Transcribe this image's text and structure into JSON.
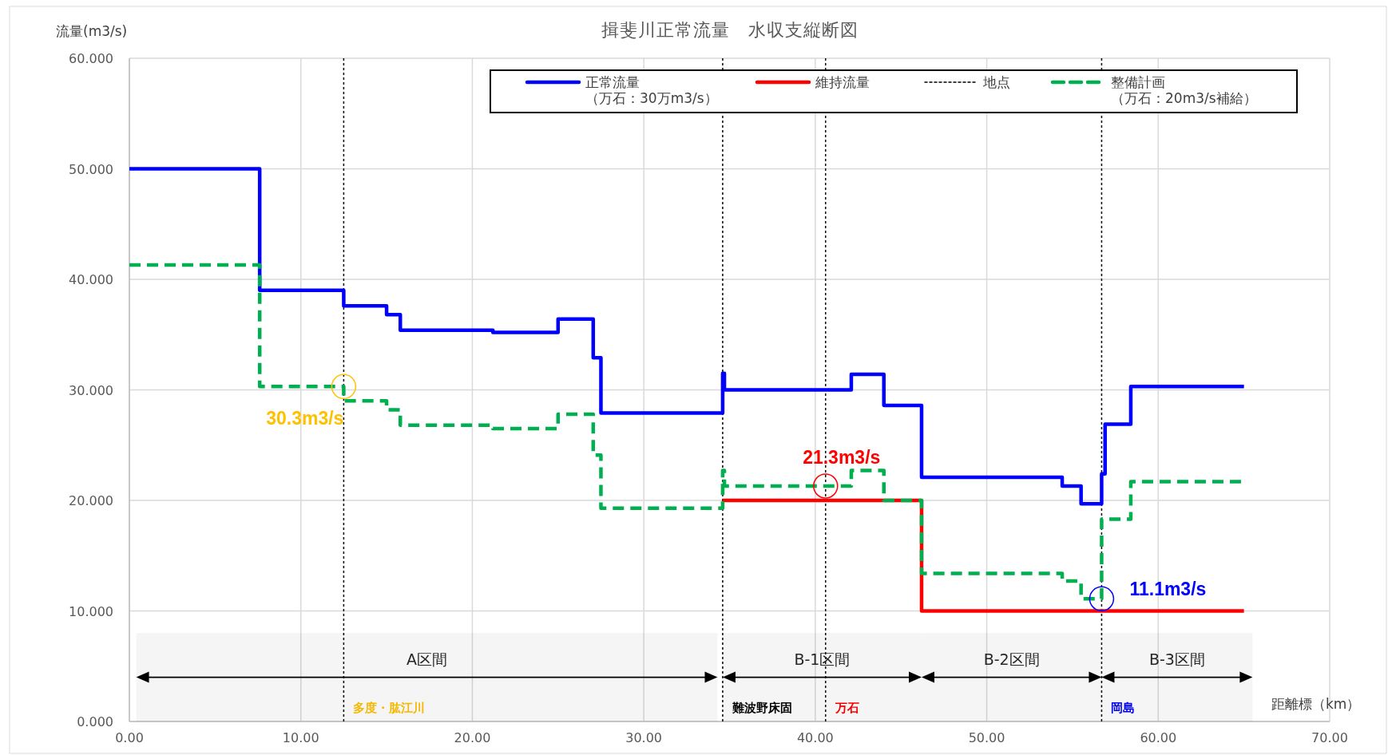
{
  "chart_data": {
    "type": "step",
    "title": "揖斐川正常流量　水収支縦断図",
    "ylabel": "流量(m3/s)",
    "xlabel": "距離標（km）",
    "xlim": [
      0,
      70
    ],
    "xticks": [
      {
        "value": 0,
        "label": "0.00"
      },
      {
        "value": 10,
        "label": "10.00"
      },
      {
        "value": 20,
        "label": "20.00"
      },
      {
        "value": 30,
        "label": "30.00"
      },
      {
        "value": 40,
        "label": "40.00"
      },
      {
        "value": 50,
        "label": "50.00"
      },
      {
        "value": 60,
        "label": "60.00"
      },
      {
        "value": 70,
        "label": "70.00"
      }
    ],
    "ylim": [
      0,
      60
    ],
    "yticks": [
      {
        "value": 0,
        "label": "0.000"
      },
      {
        "value": 10,
        "label": "10.000"
      },
      {
        "value": 20,
        "label": "20.000"
      },
      {
        "value": 30,
        "label": "30.000"
      },
      {
        "value": 40,
        "label": "40.000"
      },
      {
        "value": 50,
        "label": "50.000"
      },
      {
        "value": 60,
        "label": "60.000"
      }
    ],
    "grid": true,
    "legend": "top right",
    "series": [
      {
        "name": "正常流量（万石：30万m3/s）",
        "color": "#0000ff",
        "line_style": "solid",
        "x": [
          0,
          7.6,
          12.5,
          15.0,
          15.8,
          21.2,
          25.0,
          27.05,
          27.5,
          34.6,
          34.7,
          42.1,
          44.0,
          46.2,
          54.4,
          55.5,
          56.7,
          56.9,
          58.4,
          65
        ],
        "values": [
          50,
          39,
          37.6,
          36.8,
          35.4,
          35.2,
          36.4,
          32.9,
          27.9,
          31.5,
          30.0,
          31.4,
          28.6,
          22.1,
          21.3,
          19.7,
          22.4,
          26.9,
          30.3,
          30.3
        ]
      },
      {
        "name": "維持流量",
        "color": "#ff0000",
        "line_style": "solid",
        "x": [
          34.6,
          46.2,
          65
        ],
        "values": [
          20,
          10,
          10
        ]
      },
      {
        "name": "整備計画（万石：20m3/s補給）",
        "color": "#00b050",
        "line_style": "dashed",
        "x": [
          0,
          7.6,
          12.5,
          15.0,
          15.8,
          21.2,
          25.0,
          27.05,
          27.5,
          34.6,
          34.7,
          42.1,
          44.0,
          46.2,
          54.4,
          55.5,
          56.7,
          58.4,
          65
        ],
        "values": [
          41.3,
          30.3,
          29.0,
          28.2,
          26.8,
          26.5,
          27.8,
          24.1,
          19.3,
          22.7,
          21.3,
          22.7,
          20.0,
          13.4,
          12.7,
          11.1,
          18.3,
          21.7,
          21.7
        ]
      }
    ],
    "ref_lines": [
      {
        "axis": "x",
        "value": 12.5,
        "label": "多度・肱江川",
        "color": "#000000",
        "line_style": "dotted"
      },
      {
        "axis": "x",
        "value": 34.6,
        "label": "難波野床固",
        "color": "#000000",
        "line_style": "dotted"
      },
      {
        "axis": "x",
        "value": 40.6,
        "label": "万石",
        "color": "#000000",
        "line_style": "dotted"
      },
      {
        "axis": "x",
        "value": 56.7,
        "label": "岡島",
        "color": "#000000",
        "line_style": "dotted"
      }
    ],
    "bands": [
      {
        "axis": "x",
        "from": 0.4,
        "to": 34.3,
        "label": "A区間",
        "color": "#000000"
      },
      {
        "axis": "x",
        "from": 34.6,
        "to": 46.2,
        "label": "B-1区間",
        "color": "#000000"
      },
      {
        "axis": "x",
        "from": 46.2,
        "to": 56.7,
        "label": "B-2区間",
        "color": "#000000"
      },
      {
        "axis": "x",
        "from": 56.7,
        "to": 65.5,
        "label": "B-3区間",
        "color": "#000000"
      }
    ],
    "annotations": [
      "地点",
      {
        "text": "30.3m3/s",
        "x": 12.5,
        "y": 30.3
      },
      {
        "text": "21.3m3/s",
        "x": 40.6,
        "y": 21.3
      },
      {
        "text": "11.1m3/s",
        "x": 56.7,
        "y": 11.1
      }
    ]
  }
}
